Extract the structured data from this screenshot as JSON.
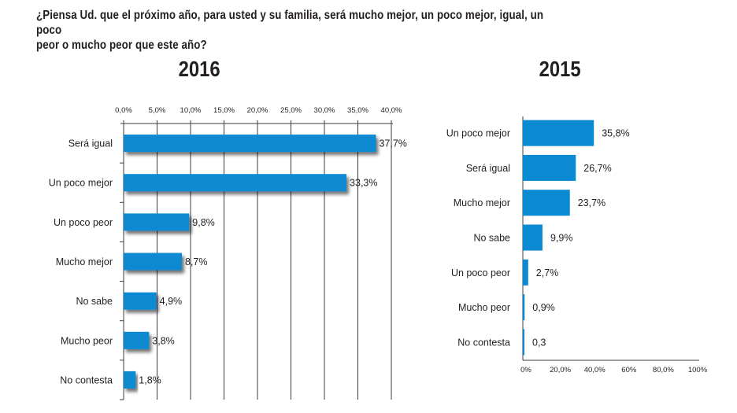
{
  "question": "¿Piensa Ud. que el próximo año, para usted y su familia, será mucho mejor, un poco mejor, igual, un poco peor o mucho peor que este año?",
  "question_lines": [
    "¿Piensa Ud. que el próximo año, para usted y su familia, será mucho mejor, un poco mejor, igual, un poco",
    "peor o mucho peor que este año?"
  ],
  "colors": {
    "bar": "#0a8ad2",
    "axis": "#3c3c3c",
    "text": "#231f20"
  },
  "chart_data": [
    {
      "type": "bar",
      "orientation": "horizontal",
      "title": "2016",
      "xlabel": "",
      "ylabel": "",
      "xlim": [
        0,
        40
      ],
      "x_ticks": [
        0,
        5,
        10,
        15,
        20,
        25,
        30,
        35,
        40
      ],
      "x_tick_labels": [
        "0,0%",
        "5,0%",
        "10,0%",
        "15,0%",
        "20,0%",
        "25,0%",
        "30,0%",
        "35,0%",
        "40,0%"
      ],
      "x_axis_position": "top",
      "grid": true,
      "categories": [
        "Será igual",
        "Un poco mejor",
        "Un poco peor",
        "Mucho mejor",
        "No sabe",
        "Mucho peor",
        "No contesta"
      ],
      "values": [
        37.7,
        33.3,
        9.8,
        8.7,
        4.9,
        3.8,
        1.8
      ],
      "value_labels": [
        "37,7%",
        "33,3%",
        "9,8%",
        "8,7%",
        "4,9%",
        "3,8%",
        "1,8%"
      ]
    },
    {
      "type": "bar",
      "orientation": "horizontal",
      "title": "2015",
      "xlabel": "",
      "ylabel": "",
      "xlim": [
        0,
        100
      ],
      "x_ticks": [
        0,
        20,
        40,
        60,
        80,
        100
      ],
      "x_tick_labels": [
        "0%",
        "20,0%",
        "40,0%",
        "60%",
        "80,0%",
        "100%"
      ],
      "x_axis_position": "bottom",
      "grid": false,
      "categories": [
        "Un poco mejor",
        "Será igual",
        "Mucho mejor",
        "No sabe",
        "Un poco peor",
        "Mucho peor",
        "No contesta"
      ],
      "values": [
        35.8,
        26.7,
        23.7,
        9.9,
        2.7,
        0.9,
        0.3
      ],
      "value_labels": [
        "35,8%",
        "26,7%",
        "23,7%",
        "9,9%",
        "2,7%",
        "0,9%",
        "0,3"
      ]
    }
  ]
}
